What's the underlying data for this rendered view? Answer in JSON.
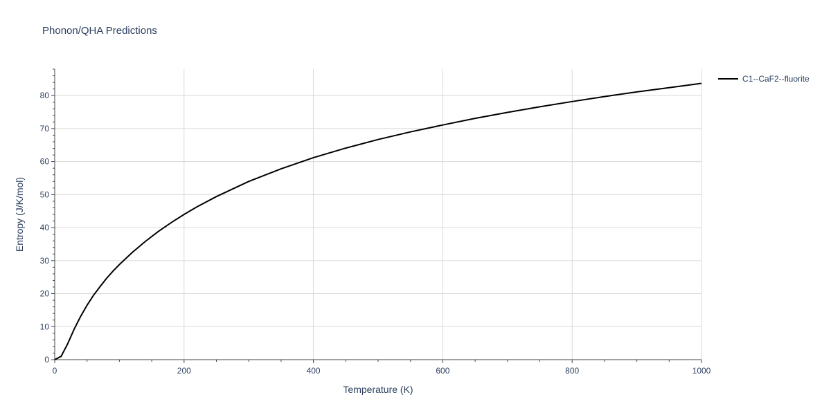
{
  "chart_data": {
    "type": "line",
    "title": "Phonon/QHA Predictions",
    "xlabel": "Temperature (K)",
    "ylabel": "Entropy (J/K/mol)",
    "xlim": [
      0,
      1000
    ],
    "ylim": [
      0,
      88
    ],
    "x_ticks": [
      0,
      200,
      400,
      600,
      800,
      1000
    ],
    "y_ticks": [
      0,
      10,
      20,
      30,
      40,
      50,
      60,
      70,
      80
    ],
    "grid": true,
    "legend_position": "top-right",
    "series": [
      {
        "name": "C1--CaF2--fluorite",
        "color": "#000000",
        "x": [
          0,
          10,
          20,
          30,
          40,
          50,
          60,
          70,
          80,
          90,
          100,
          120,
          140,
          160,
          180,
          200,
          220,
          250,
          300,
          350,
          400,
          450,
          500,
          550,
          600,
          650,
          700,
          750,
          800,
          850,
          900,
          950,
          1000
        ],
        "y": [
          0,
          1,
          4.8,
          9.2,
          13.1,
          16.5,
          19.5,
          22.1,
          24.6,
          26.8,
          28.8,
          32.5,
          35.8,
          38.8,
          41.5,
          44.0,
          46.3,
          49.4,
          54.0,
          57.8,
          61.2,
          64.1,
          66.7,
          69.0,
          71.1,
          73.1,
          74.9,
          76.6,
          78.2,
          79.7,
          81.1,
          82.4,
          83.7
        ]
      }
    ]
  }
}
